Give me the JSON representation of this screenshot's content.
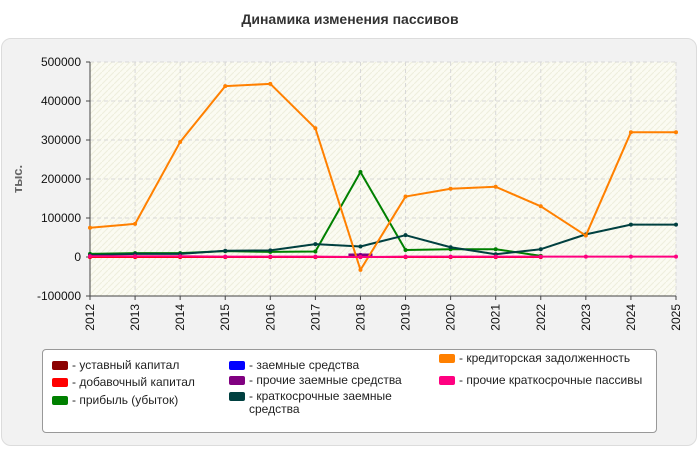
{
  "chart_data": {
    "type": "line",
    "title": "Динамика изменения пассивов",
    "ylabel": "тыс.",
    "xlabel": "",
    "x": [
      "2012",
      "2013",
      "2014",
      "2015",
      "2016",
      "2017",
      "2018",
      "2019",
      "2020",
      "2021",
      "2022",
      "2023",
      "2024",
      "2025"
    ],
    "ylim": [
      -100000,
      500000
    ],
    "yticks": [
      "500000",
      "400000",
      "300000",
      "200000",
      "100000",
      "0",
      "-100000"
    ],
    "grid": true,
    "legend_position": "bottom",
    "series": [
      {
        "name": "- уставный капитал",
        "color": "#8b0000",
        "values": [
          100,
          100,
          100,
          100,
          100,
          100,
          100,
          100,
          100,
          100,
          100,
          null,
          null,
          null
        ]
      },
      {
        "name": "- добавочный капитал",
        "color": "#ff0000",
        "values": [
          0,
          0,
          0,
          0,
          0,
          0,
          0,
          0,
          0,
          0,
          0,
          null,
          null,
          null
        ]
      },
      {
        "name": "- прибыль (убыток)",
        "color": "#008000",
        "values": [
          8000,
          10000,
          10000,
          15000,
          13000,
          14000,
          218000,
          18000,
          20000,
          20000,
          3000,
          null,
          null,
          null
        ]
      },
      {
        "name": "- заемные средства",
        "color": "#0000ff",
        "values": [
          null,
          null,
          null,
          null,
          null,
          null,
          5000,
          null,
          null,
          null,
          null,
          null,
          null,
          null
        ]
      },
      {
        "name": "- прочие заемные средства",
        "color": "#800080",
        "values": [
          null,
          null,
          null,
          null,
          null,
          null,
          5000,
          null,
          null,
          null,
          null,
          null,
          null,
          null
        ]
      },
      {
        "name": "- краткосрочные заемные средства",
        "color": "#004040",
        "values": [
          5000,
          8000,
          8000,
          16000,
          17000,
          33000,
          27000,
          56000,
          25000,
          7000,
          20000,
          58000,
          83000,
          83000
        ]
      },
      {
        "name": "- кредиторская задолженность",
        "color": "#ff8000",
        "values": [
          75000,
          85000,
          295000,
          438000,
          444000,
          330000,
          -33000,
          155000,
          175000,
          180000,
          130000,
          55000,
          320000,
          320000
        ]
      },
      {
        "name": "- прочие краткосрочные пассивы",
        "color": "#ff0080",
        "values": [
          2000,
          2000,
          2000,
          1000,
          1000,
          1000,
          0,
          1000,
          1000,
          1000,
          1000,
          1000,
          1000,
          1000
        ]
      }
    ]
  }
}
